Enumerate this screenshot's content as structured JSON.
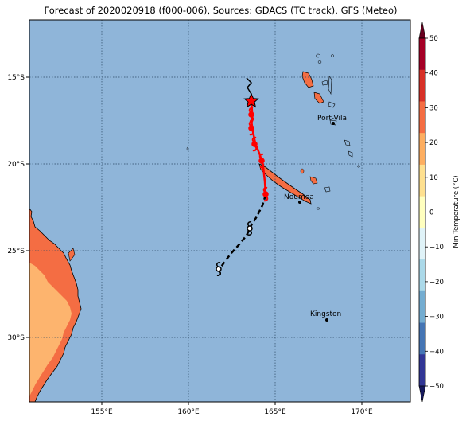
{
  "title": "Forecast of 2020020918 (f000-006), Sources: GDACS (TC track), GFS (Meteo)",
  "map": {
    "ocean_color": "#8fb5d9",
    "grid": "dotted",
    "lon_ticks": [
      "155°E",
      "160°E",
      "165°E",
      "170°E"
    ],
    "lat_ticks": [
      "15°S",
      "20°S",
      "25°S",
      "30°S"
    ],
    "cities": [
      {
        "name": "Port-Vila"
      },
      {
        "name": "Noumea"
      },
      {
        "name": "Kingston"
      }
    ]
  },
  "colorbar": {
    "label": "Min Temperature (°C)",
    "ticks": [
      "50",
      "40",
      "30",
      "20",
      "10",
      "0",
      "−10",
      "−20",
      "−30",
      "−40",
      "−50"
    ],
    "colors": [
      "#a50026",
      "#d73027",
      "#f46d43",
      "#fdae61",
      "#fee090",
      "#ffffbf",
      "#e0f3f8",
      "#abd9e9",
      "#74add1",
      "#4575b4",
      "#313695"
    ]
  },
  "track": {
    "icon": "cyclone-icon",
    "marker": "star-icon",
    "colors": {
      "observed": "#ff0000",
      "forecast": "#000000"
    }
  }
}
